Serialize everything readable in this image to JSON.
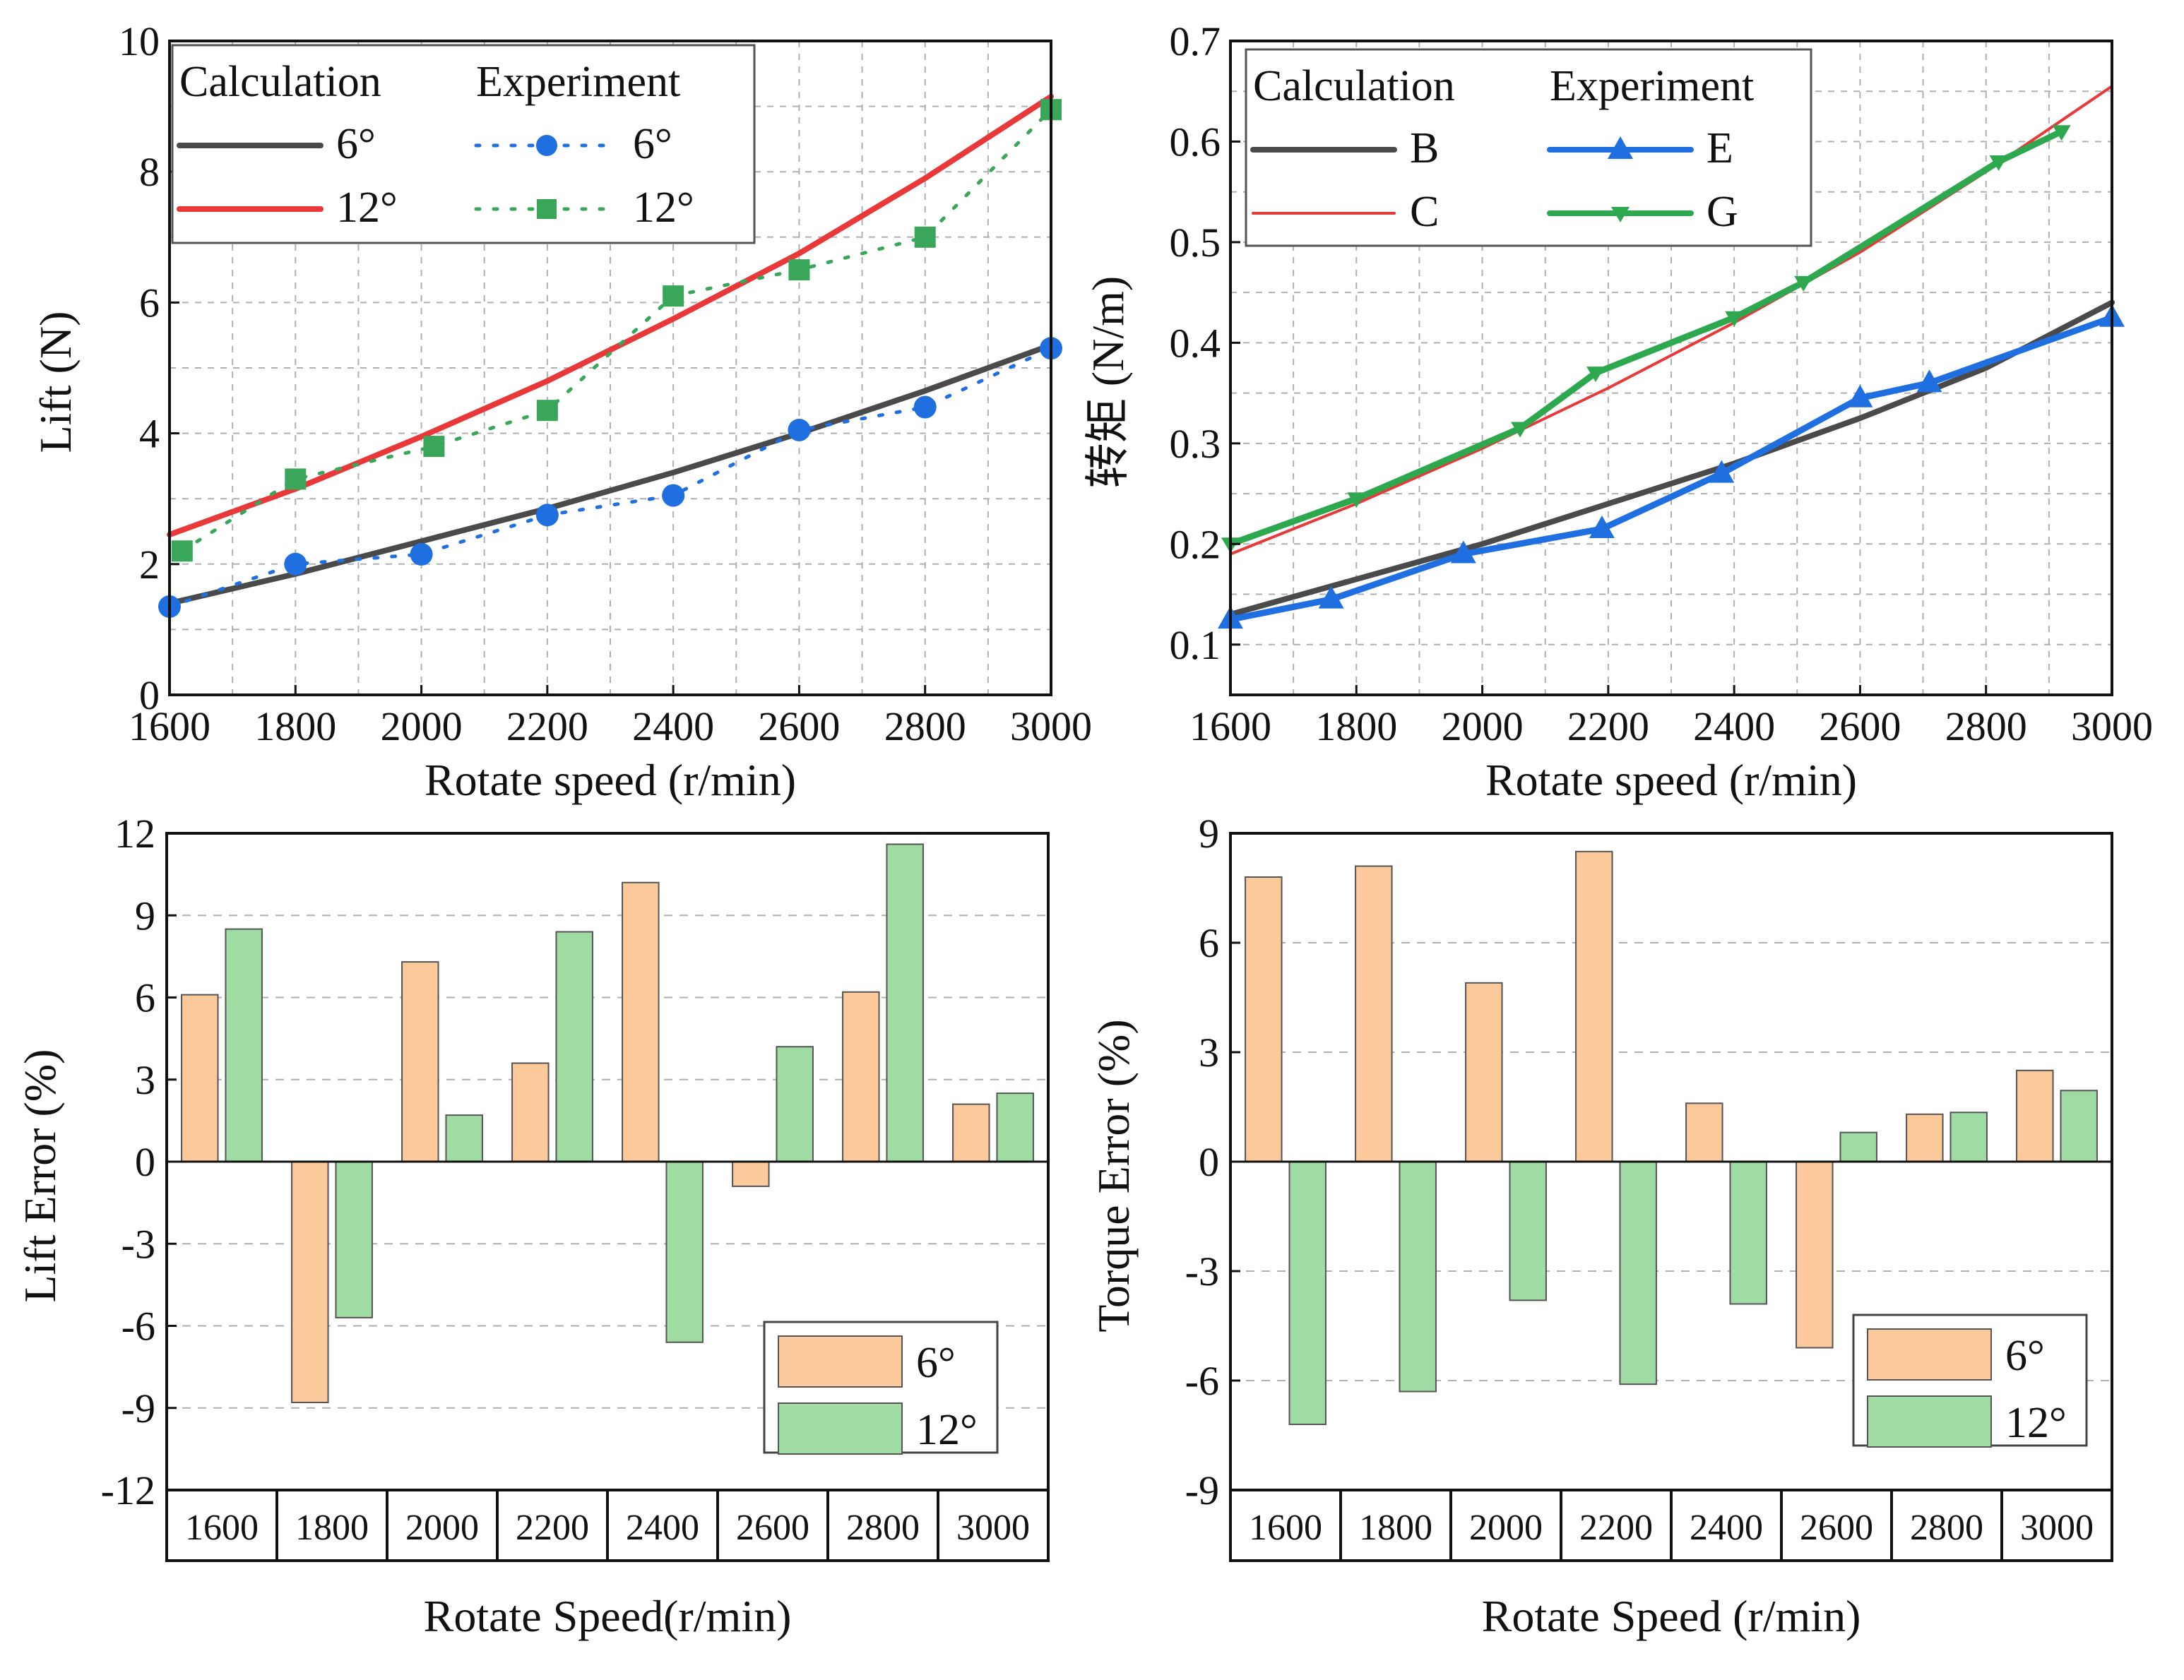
{
  "colors": {
    "black_line": "#4a4a4a",
    "red_line": "#e8383a",
    "blue": "#1f6fe0",
    "green": "#2ea84f",
    "green_marker": "#3aa65a",
    "bar_orange": "#fbc99a",
    "bar_green": "#9fdba2",
    "grid": "#b0b0b0"
  },
  "chart_data": [
    {
      "id": "lift",
      "type": "line",
      "xlabel": "Rotate speed (r/min)",
      "ylabel": "Lift (N)",
      "xlim": [
        1600,
        3000
      ],
      "ylim": [
        0,
        10
      ],
      "xticks": [
        "1600",
        "1800",
        "2000",
        "2200",
        "2400",
        "2600",
        "2800",
        "3000"
      ],
      "yticks": [
        "0",
        "2",
        "4",
        "6",
        "8",
        "10"
      ],
      "legend_headers": [
        "Calculation",
        "Experiment"
      ],
      "series": [
        {
          "name": "6°",
          "kind": "calc",
          "x": [
            1600,
            1800,
            2000,
            2200,
            2400,
            2600,
            2800,
            3000
          ],
          "values": [
            1.4,
            1.85,
            2.35,
            2.85,
            3.4,
            4.0,
            4.65,
            5.35
          ]
        },
        {
          "name": "12°",
          "kind": "calc",
          "x": [
            1600,
            1800,
            2000,
            2200,
            2400,
            2600,
            2800,
            3000
          ],
          "values": [
            2.45,
            3.15,
            3.95,
            4.8,
            5.75,
            6.75,
            7.9,
            9.15
          ]
        },
        {
          "name": "6°",
          "kind": "exp",
          "marker": "circle",
          "x": [
            1600,
            1800,
            2000,
            2200,
            2400,
            2600,
            2800,
            3000
          ],
          "values": [
            1.35,
            2.0,
            2.15,
            2.75,
            3.05,
            4.05,
            4.4,
            5.3
          ]
        },
        {
          "name": "12°",
          "kind": "exp",
          "marker": "square",
          "x": [
            1620,
            1800,
            2020,
            2200,
            2400,
            2600,
            2800,
            3000
          ],
          "values": [
            2.2,
            3.3,
            3.8,
            4.35,
            6.1,
            6.5,
            7.0,
            8.95
          ]
        }
      ]
    },
    {
      "id": "torque",
      "type": "line",
      "xlabel": "Rotate speed (r/min)",
      "ylabel": "转矩 (N/m)",
      "xlim": [
        1600,
        3000
      ],
      "ylim": [
        0.05,
        0.7
      ],
      "xticks": [
        "1600",
        "1800",
        "2000",
        "2200",
        "2400",
        "2600",
        "2800",
        "3000"
      ],
      "yticks": [
        "0.1",
        "0.2",
        "0.3",
        "0.4",
        "0.5",
        "0.6",
        "0.7"
      ],
      "legend_headers": [
        "Calculation",
        "Experiment"
      ],
      "series": [
        {
          "name": "B",
          "kind": "calc",
          "x": [
            1600,
            1800,
            2000,
            2200,
            2400,
            2600,
            2800,
            3000
          ],
          "values": [
            0.13,
            0.165,
            0.2,
            0.24,
            0.28,
            0.325,
            0.375,
            0.44
          ]
        },
        {
          "name": "C",
          "kind": "calc",
          "x": [
            1600,
            1800,
            2000,
            2200,
            2400
          ],
          "values": [
            0.19,
            0.24,
            0.295,
            0.355,
            0.42
          ],
          "extra_x": [
            2400,
            2600,
            2800,
            3000
          ],
          "extra_values": [
            0.42,
            0.49,
            0.57,
            0.655
          ]
        },
        {
          "name": "E",
          "kind": "exp",
          "marker": "triangle",
          "x": [
            1600,
            1760,
            1970,
            2190,
            2380,
            2600,
            2710,
            3000
          ],
          "values": [
            0.125,
            0.145,
            0.19,
            0.215,
            0.27,
            0.345,
            0.36,
            0.425
          ]
        },
        {
          "name": "G",
          "kind": "exp",
          "marker": "tri-down",
          "x": [
            1600,
            1800,
            2060,
            2180,
            2400,
            2510,
            2820,
            2920
          ],
          "values": [
            0.2,
            0.245,
            0.315,
            0.37,
            0.425,
            0.46,
            0.58,
            0.61
          ]
        }
      ]
    },
    {
      "id": "lift_error",
      "type": "bar",
      "xlabel": "Rotate Speed(r/min)",
      "ylabel": "Lift Error (%)",
      "ylim": [
        -12,
        12
      ],
      "yticks": [
        "-12",
        "-9",
        "-6",
        "-3",
        "0",
        "3",
        "6",
        "9",
        "12"
      ],
      "categories": [
        "1600",
        "1800",
        "2000",
        "2200",
        "2400",
        "2600",
        "2800",
        "3000"
      ],
      "series": [
        {
          "name": "6°",
          "values": [
            6.1,
            -8.8,
            7.3,
            3.6,
            10.2,
            -0.9,
            6.2,
            2.1
          ]
        },
        {
          "name": "12°",
          "values": [
            8.5,
            -5.7,
            1.7,
            8.4,
            -6.6,
            4.2,
            11.6,
            2.5
          ]
        }
      ]
    },
    {
      "id": "torque_error",
      "type": "bar",
      "xlabel": "Rotate Speed (r/min)",
      "ylabel": "Torque Error (%)",
      "ylim": [
        -9,
        9
      ],
      "yticks": [
        "-9",
        "-6",
        "-3",
        "0",
        "3",
        "6",
        "9"
      ],
      "categories": [
        "1600",
        "1800",
        "2000",
        "2200",
        "2400",
        "2600",
        "2800",
        "3000"
      ],
      "series": [
        {
          "name": "6°",
          "values": [
            7.8,
            8.1,
            4.9,
            8.5,
            1.6,
            -5.1,
            1.3,
            2.5
          ]
        },
        {
          "name": "12°",
          "values": [
            -7.2,
            -6.3,
            -3.8,
            -6.1,
            -3.9,
            0.8,
            1.35,
            1.95
          ]
        }
      ]
    }
  ]
}
